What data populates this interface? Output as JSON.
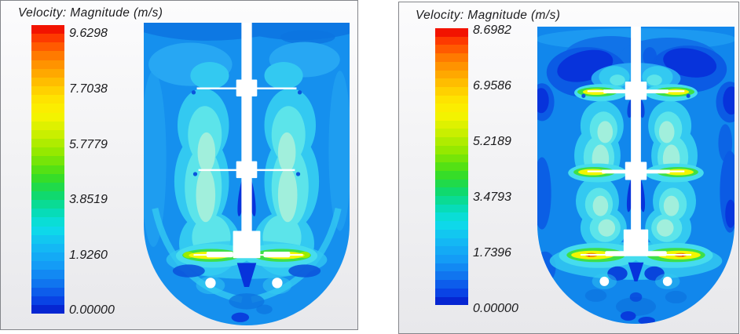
{
  "window": {
    "background": "#ffffff"
  },
  "panels": [
    {
      "title": "Velocity: Magnitude (m/s)",
      "ticks": [
        "9.6298",
        "7.7038",
        "5.7779",
        "3.8519",
        "1.9260",
        "0.00000"
      ]
    },
    {
      "title": "Velocity: Magnitude (m/s)",
      "ticks": [
        "8.6982",
        "6.9586",
        "5.2189",
        "3.4793",
        "1.7396",
        "0.00000"
      ]
    }
  ],
  "colormap": {
    "bands": 33,
    "stops": [
      {
        "t": 0.0,
        "c": "#EC0000"
      },
      {
        "t": 0.05,
        "c": "#FF4000"
      },
      {
        "t": 0.12,
        "c": "#FF8800"
      },
      {
        "t": 0.19,
        "c": "#FFB800"
      },
      {
        "t": 0.25,
        "c": "#FFE000"
      },
      {
        "t": 0.31,
        "c": "#F8F400"
      },
      {
        "t": 0.37,
        "c": "#D0F000"
      },
      {
        "t": 0.45,
        "c": "#8CE800"
      },
      {
        "t": 0.52,
        "c": "#3EDE1C"
      },
      {
        "t": 0.58,
        "c": "#12D860"
      },
      {
        "t": 0.64,
        "c": "#06DCAC"
      },
      {
        "t": 0.7,
        "c": "#0CDEE8"
      },
      {
        "t": 0.76,
        "c": "#14BEF4"
      },
      {
        "t": 0.83,
        "c": "#149EF6"
      },
      {
        "t": 0.89,
        "c": "#1078F0"
      },
      {
        "t": 0.95,
        "c": "#0A48E8"
      },
      {
        "t": 0.97,
        "c": "#0733DB"
      },
      {
        "t": 1.0,
        "c": "#0418C8"
      }
    ]
  },
  "colors": {
    "panel_border": "#83858a",
    "text": "#1b1b1d",
    "bulk_flow_blue": "#1590EE",
    "plume_cyan": "#33C9F1",
    "plume_core_mint": "#A5F0DC",
    "jet_yellow": "#F2F600",
    "jet_green": "#3EDF48",
    "jet_orange": "#F28300",
    "jet_red": "#E81600",
    "low_velocity_navy": "#0733DB",
    "structure_white": "#FFFFFF"
  },
  "chart_data": [
    {
      "type": "heatmap",
      "title": "Velocity: Magnitude (m/s)",
      "units": "m/s",
      "subject": "CFD velocity-magnitude filled contour of a round-bottom stirred tank; central shaft with three impellers, high-velocity (yellow/green) jets at bottom impeller tips, two sparger holes below",
      "legend_position": "left",
      "colorbar": {
        "orientation": "vertical",
        "min": 0.0,
        "max": 9.6298,
        "tick_values": [
          9.6298,
          7.7038,
          5.7779,
          3.8519,
          1.926,
          0.0
        ],
        "tick_labels": [
          "9.6298",
          "7.7038",
          "5.7779",
          "3.8519",
          "1.9260",
          "0.00000"
        ],
        "colormap": "rainbow (red = max, dark blue = min)"
      }
    },
    {
      "type": "heatmap",
      "title": "Velocity: Magnitude (m/s)",
      "units": "m/s",
      "subject": "CFD velocity-magnitude filled contour of a round-bottom stirred tank; central shaft with three impellers, yellow/green tip jets at all three impellers, navy low-velocity zones near free surface, two sparger holes below bottom impeller",
      "legend_position": "left",
      "colorbar": {
        "orientation": "vertical",
        "min": 0.0,
        "max": 8.6982,
        "tick_values": [
          8.6982,
          6.9586,
          5.2189,
          3.4793,
          1.7396,
          0.0
        ],
        "tick_labels": [
          "8.6982",
          "6.9586",
          "5.2189",
          "3.4793",
          "1.7396",
          "0.00000"
        ],
        "colormap": "rainbow (red = max, dark blue = min)"
      }
    }
  ]
}
